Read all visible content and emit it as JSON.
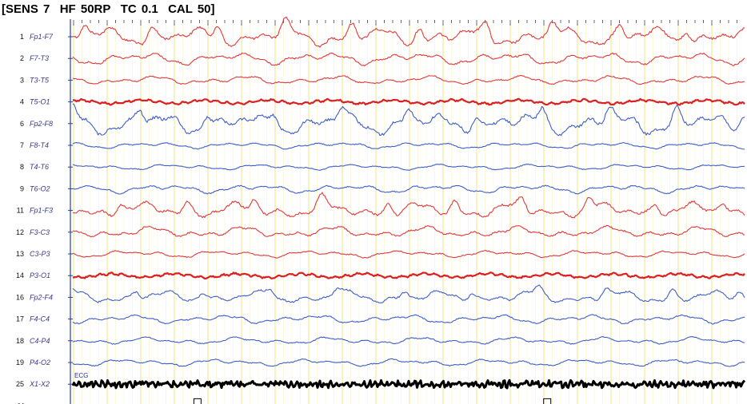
{
  "header": {
    "sens": "SENS 7",
    "hf": "HF 50RP",
    "tc": "TC 0.1",
    "cal": "CAL 50"
  },
  "colors": {
    "red": "#e03a3a",
    "red_bold": "#dd1f1f",
    "blue": "#3f5fc8",
    "black": "#000000",
    "grid_major": "#f2e684",
    "grid_minor": "#fbf6cf"
  },
  "chart_data": {
    "type": "line",
    "title": "",
    "xlabel": "",
    "ylabel": "",
    "grid": true,
    "legend": "none",
    "channels": [
      {
        "num": "1",
        "label": "Fp1-F7",
        "color": "red",
        "amplitude": 1.3,
        "style": "slow-spiky"
      },
      {
        "num": "2",
        "label": "F7-T3",
        "color": "red",
        "amplitude": 0.85,
        "style": "slow"
      },
      {
        "num": "3",
        "label": "T3-T5",
        "color": "red",
        "amplitude": 0.6,
        "style": "slow"
      },
      {
        "num": "4",
        "label": "T5-O1",
        "color": "red_bold",
        "amplitude": 0.3,
        "style": "flat-thick"
      },
      {
        "num": "6",
        "label": "Fp2-F8",
        "color": "blue",
        "amplitude": 1.5,
        "style": "slow-spiky"
      },
      {
        "num": "7",
        "label": "F8-T4",
        "color": "blue",
        "amplitude": 0.45,
        "style": "slow"
      },
      {
        "num": "8",
        "label": "T4-T6",
        "color": "blue",
        "amplitude": 0.4,
        "style": "slow"
      },
      {
        "num": "9",
        "label": "T6-O2",
        "color": "blue",
        "amplitude": 0.6,
        "style": "slow"
      },
      {
        "num": "11",
        "label": "Fp1-F3",
        "color": "red",
        "amplitude": 1.1,
        "style": "slow-spiky"
      },
      {
        "num": "12",
        "label": "F3-C3",
        "color": "red",
        "amplitude": 0.8,
        "style": "slow"
      },
      {
        "num": "13",
        "label": "C3-P3",
        "color": "red",
        "amplitude": 0.5,
        "style": "slow"
      },
      {
        "num": "14",
        "label": "P3-O1",
        "color": "red_bold",
        "amplitude": 0.3,
        "style": "flat-thick"
      },
      {
        "num": "16",
        "label": "Fp2-F4",
        "color": "blue",
        "amplitude": 0.9,
        "style": "slow-spiky"
      },
      {
        "num": "17",
        "label": "F4-C4",
        "color": "blue",
        "amplitude": 0.6,
        "style": "slow"
      },
      {
        "num": "18",
        "label": "C4-P4",
        "color": "blue",
        "amplitude": 0.5,
        "style": "slow"
      },
      {
        "num": "19",
        "label": "P4-O2",
        "color": "blue",
        "amplitude": 0.5,
        "style": "slow"
      },
      {
        "num": "25",
        "label": "X1-X2",
        "color": "black",
        "amplitude": 0.35,
        "style": "ecg",
        "annotation": "ECG"
      },
      {
        "num": "M",
        "label": "",
        "color": "black",
        "amplitude": 0,
        "style": "marker",
        "events": [
          0.18,
          0.7
        ]
      }
    ]
  }
}
